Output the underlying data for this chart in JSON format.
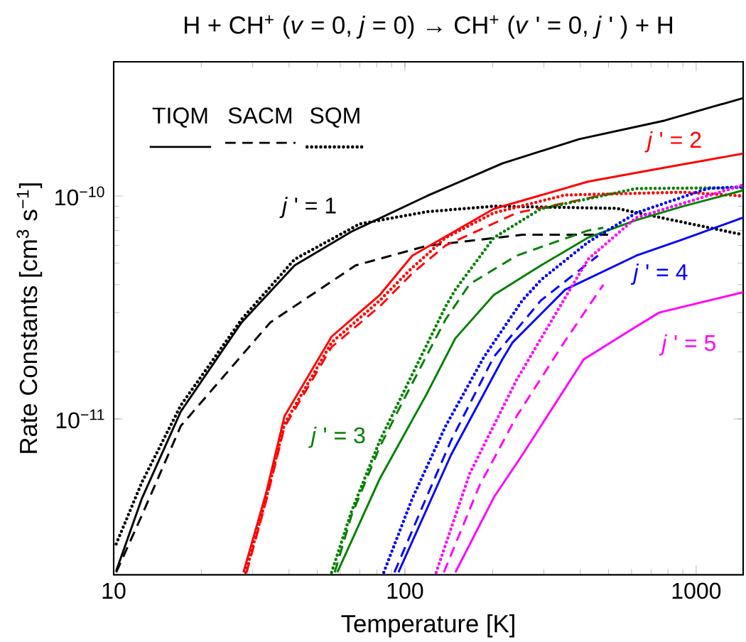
{
  "chart_data": {
    "type": "line",
    "title": "H + CH$^{+}$ (*v* = 0, *j* = 0) → CH$^{+}$ (*v* ' = 0, *j* ' ) + H",
    "xlabel": "Temperature [K]",
    "ylabel": "Rate Constants [cm$^{3}$ s$^{−1}$]",
    "log": "xy",
    "xlim": [
      10,
      1450
    ],
    "ylim": [
      2e-12,
      4e-10
    ],
    "xticks": [
      10,
      100,
      1000
    ],
    "yticks": [
      {
        "value": 1e-11,
        "label": "10$^{−11}$"
      },
      {
        "value": 1e-10,
        "label": "10$^{−10}$"
      }
    ],
    "series": [
      {
        "color": "#000000",
        "line_style": "solid",
        "x": [
          10.2,
          12.5,
          17,
          27.5,
          41.8,
          65.6,
          119,
          216,
          397,
          780,
          1450
        ],
        "values": [
          2.08e-12,
          4.4e-12,
          1.08e-11,
          2.71e-11,
          4.88e-11,
          6.93e-11,
          1e-10,
          1.4e-10,
          1.8e-10,
          2.18e-10,
          2.75e-10
        ]
      },
      {
        "color": "#000000",
        "line_style": "dashed",
        "x": [
          10.2,
          12.5,
          17,
          34.5,
          67.7,
          119,
          253,
          498
        ],
        "values": [
          2.05e-12,
          3.7e-12,
          9.3e-12,
          2.71e-11,
          4.88e-11,
          5.98e-11,
          6.7e-11,
          6.7e-11
        ]
      },
      {
        "color": "#000000",
        "line_style": "dotted",
        "x": [
          10.2,
          12.5,
          17,
          27.5,
          41.8,
          70,
          119,
          202,
          532,
          1450
        ],
        "values": [
          2.75e-12,
          5.2e-12,
          1.15e-11,
          2.8e-11,
          5.2e-11,
          7.5e-11,
          8.5e-11,
          9e-11,
          8.8e-11,
          6.7e-11
        ]
      },
      {
        "color": "#ff0000",
        "line_style": "solid",
        "x": [
          27.9,
          33.4,
          38.6,
          56,
          82,
          106,
          202,
          425,
          780,
          1450
        ],
        "values": [
          2.05e-12,
          4.67e-12,
          1.03e-11,
          2.34e-11,
          3.6e-11,
          5.4e-11,
          8.76e-11,
          1.16e-10,
          1.34e-10,
          1.55e-10
        ]
      },
      {
        "color": "#ff0000",
        "line_style": "dashed",
        "x": [
          28.6,
          33.4,
          38.6,
          56,
          82,
          106,
          138,
          242,
          500
        ],
        "values": [
          2.05e-12,
          4.3e-12,
          9.2e-12,
          2.1e-11,
          3.2e-11,
          4.5e-11,
          6e-11,
          8.4e-11,
          1.02e-10
        ]
      },
      {
        "color": "#ff0000",
        "line_style": "dotted",
        "x": [
          28.4,
          33.4,
          38.6,
          56,
          82,
          104,
          138,
          202,
          355,
          903,
          1450
        ],
        "values": [
          2.05e-12,
          4.4e-12,
          9.5e-12,
          2.2e-11,
          3.4e-11,
          4.66e-11,
          6.5e-11,
          8.4e-11,
          1.01e-10,
          1.04e-10,
          1e-10
        ]
      },
      {
        "color": "#008000",
        "line_style": "solid",
        "x": [
          58.6,
          82,
          119,
          149,
          202,
          293,
          425,
          623,
          903,
          1450
        ],
        "values": [
          2.05e-12,
          5.4e-12,
          1.3e-11,
          2.3e-11,
          3.6e-11,
          4.88e-11,
          6.5e-11,
          7.8e-11,
          9e-11,
          1.06e-10
        ]
      },
      {
        "color": "#008000",
        "line_style": "dashed",
        "x": [
          57.4,
          65.6,
          82,
          98.4,
          138,
          167,
          242,
          425,
          480
        ],
        "values": [
          2.05e-12,
          3.7e-12,
          7.5e-12,
          1.2e-11,
          2.8e-11,
          4.03e-11,
          5.4e-11,
          7e-11,
          7.2e-11
        ]
      },
      {
        "color": "#008000",
        "line_style": "dotted",
        "x": [
          56,
          65.6,
          82,
          98.4,
          138,
          149,
          202,
          293,
          623,
          1450
        ],
        "values": [
          2.05e-12,
          3.86e-12,
          8e-12,
          1.3e-11,
          3.2e-11,
          3.8e-11,
          6.5e-11,
          8.76e-11,
          1.08e-10,
          1.09e-10
        ]
      },
      {
        "color": "#0000ff",
        "line_style": "solid",
        "x": [
          95,
          144,
          216,
          234,
          355,
          623,
          903,
          1450
        ],
        "values": [
          2.05e-12,
          6.9e-12,
          1.85e-11,
          2.2e-11,
          3.8e-11,
          5.4e-11,
          6.4e-11,
          8e-11
        ]
      },
      {
        "color": "#0000ff",
        "line_style": "dashed",
        "x": [
          92,
          119,
          144,
          202,
          293,
          460
        ],
        "values": [
          2.05e-12,
          4.5e-12,
          8e-12,
          1.9e-11,
          3.4e-11,
          5.4e-11
        ]
      },
      {
        "color": "#0000ff",
        "line_style": "dotted",
        "x": [
          84.6,
          106,
          138,
          187,
          253,
          293,
          425,
          623,
          1094,
          1450
        ],
        "values": [
          2.05e-12,
          4.4e-12,
          9.3e-12,
          1.9e-11,
          3.4e-11,
          4.2e-11,
          6.2e-11,
          8.4e-11,
          1.08e-10,
          1.1e-10
        ]
      },
      {
        "color": "#ff00ff",
        "line_style": "solid",
        "x": [
          149,
          202,
          253,
          411,
          623,
          747,
          1450
        ],
        "values": [
          2.05e-12,
          4.45e-12,
          6.9e-12,
          1.85e-11,
          2.6e-11,
          3e-11,
          3.7e-11
        ]
      },
      {
        "color": "#ff00ff",
        "line_style": "dashed",
        "x": [
          136,
          180,
          242,
          355,
          480
        ],
        "values": [
          2.05e-12,
          5e-12,
          1.03e-11,
          2.24e-11,
          4e-11
        ]
      },
      {
        "color": "#ff00ff",
        "line_style": "dotted",
        "x": [
          128,
          167,
          242,
          355,
          425,
          623,
          1450
        ],
        "values": [
          2.05e-12,
          5.7e-12,
          1.5e-11,
          3.5e-11,
          5.2e-11,
          8e-11,
          1.12e-10
        ]
      }
    ],
    "annotations": [
      "TIQM",
      "SACM",
      "SQM",
      "*j* ' = 1",
      "*j* ' = 2",
      "*j* ' = 3",
      "*j* ' = 4",
      "*j* ' = 5"
    ]
  }
}
